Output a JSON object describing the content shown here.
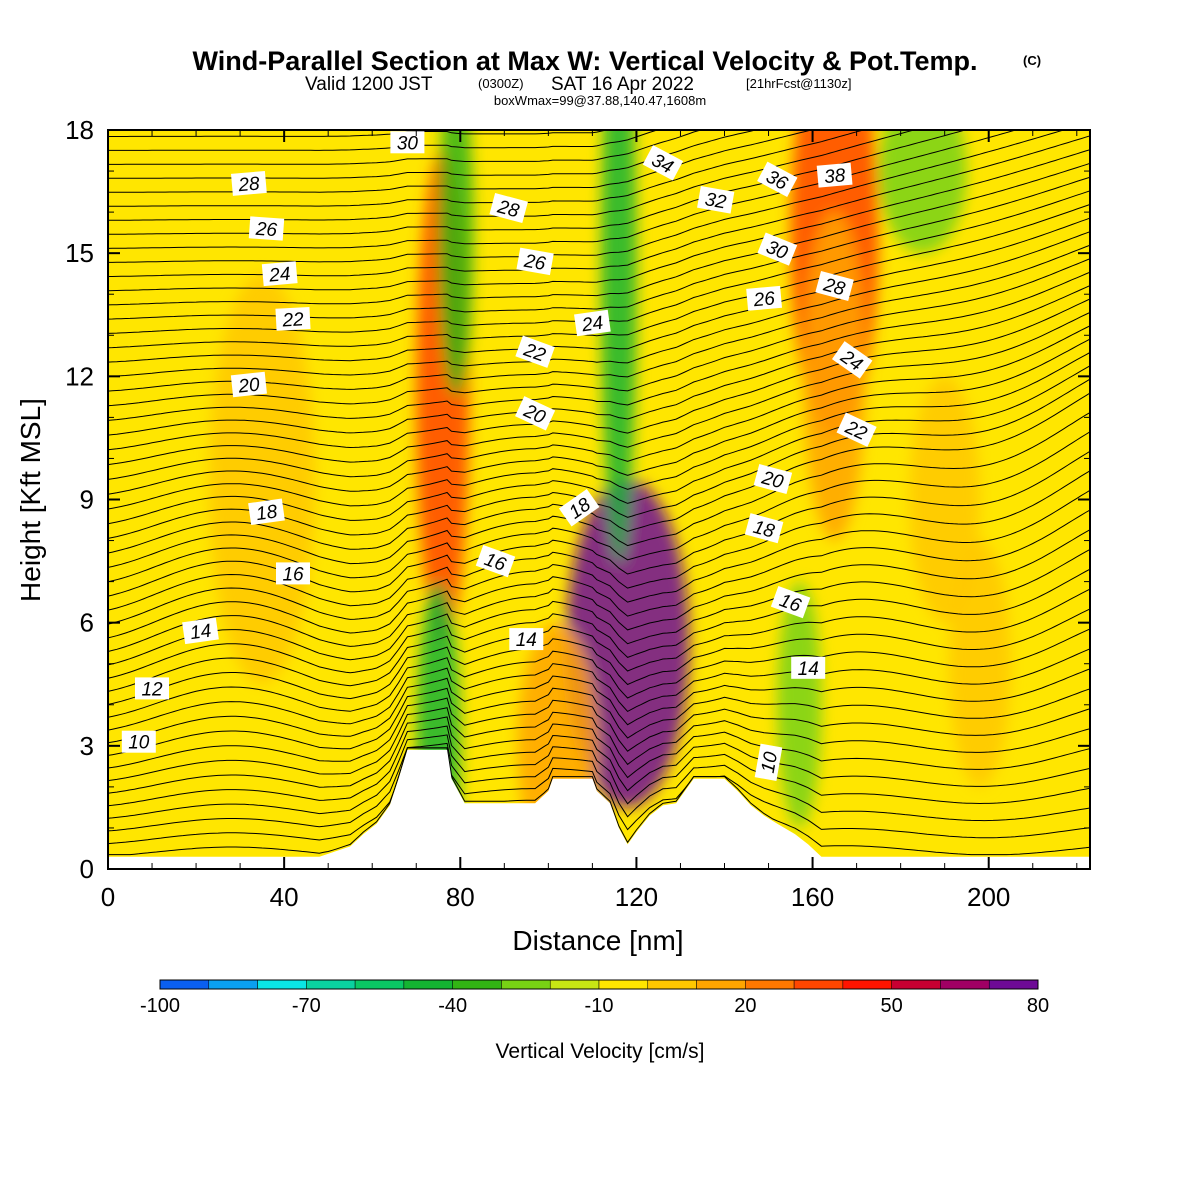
{
  "title": {
    "main": "Wind-Parallel Section at Max W: Vertical Velocity & Pot.Temp.",
    "copyright": "(C)",
    "valid_prefix": "Valid 1200 JST",
    "valid_utc": "(0300Z)",
    "valid_suffix": "SAT 16 Apr 2022",
    "forecast": "[21hrFcst@1130z]",
    "boxwmax": "boxWmax=99@37.88,140.47,1608m"
  },
  "chart_data": {
    "type": "heatmap",
    "xlabel": "Distance [nm]",
    "ylabel": "Height [Kft MSL]",
    "xlim": [
      0,
      223
    ],
    "ylim": [
      0,
      18
    ],
    "x_ticks": [
      "0",
      "40",
      "80",
      "120",
      "160",
      "200"
    ],
    "y_ticks": [
      "0",
      "3",
      "6",
      "9",
      "12",
      "15",
      "18"
    ],
    "colorbar": {
      "title": "Vertical Velocity [cm/s]",
      "labels": [
        "-100",
        "-70",
        "-40",
        "-10",
        "20",
        "50",
        "80"
      ],
      "levels": [
        -100,
        -90,
        -80,
        -70,
        -60,
        -50,
        -40,
        -30,
        -20,
        -10,
        0,
        10,
        20,
        30,
        40,
        50,
        60,
        70,
        80
      ],
      "colors": [
        "#1e1ee6",
        "#0a5ff0",
        "#0aa0f0",
        "#0ae6e6",
        "#0ad2a0",
        "#0ac864",
        "#14b432",
        "#32b414",
        "#78d214",
        "#c8e614",
        "#ffe600",
        "#ffc800",
        "#ffa500",
        "#ff7800",
        "#ff4600",
        "#ff1400",
        "#c80032",
        "#a00064",
        "#6e0a96"
      ]
    },
    "terrain_profile_kft": [
      [
        0,
        0.3
      ],
      [
        48,
        0.3
      ],
      [
        55,
        0.55
      ],
      [
        58,
        0.85
      ],
      [
        61,
        1.1
      ],
      [
        64,
        1.55
      ],
      [
        66,
        2.2
      ],
      [
        68,
        2.9
      ],
      [
        77,
        2.9
      ],
      [
        78,
        2.2
      ],
      [
        81,
        1.6
      ],
      [
        97,
        1.6
      ],
      [
        100,
        1.9
      ],
      [
        101,
        2.2
      ],
      [
        110,
        2.2
      ],
      [
        111,
        1.9
      ],
      [
        114,
        1.6
      ],
      [
        116,
        1.0
      ],
      [
        118,
        0.6
      ],
      [
        120,
        0.9
      ],
      [
        123,
        1.3
      ],
      [
        126,
        1.55
      ],
      [
        129,
        1.6
      ],
      [
        131,
        1.9
      ],
      [
        133,
        2.2
      ],
      [
        140,
        2.2
      ],
      [
        143,
        1.9
      ],
      [
        146,
        1.55
      ],
      [
        149,
        1.3
      ],
      [
        152,
        1.1
      ],
      [
        156,
        0.85
      ],
      [
        159,
        0.6
      ],
      [
        162,
        0.3
      ],
      [
        223,
        0.3
      ]
    ],
    "vertical_velocity_features": [
      {
        "x": 118,
        "y": 5.5,
        "peak_cm_s": 80
      },
      {
        "x": 76,
        "y": 11.5,
        "peak_cm_s": 40
      },
      {
        "x": 75,
        "y": 3.0,
        "peak_cm_s": -40
      },
      {
        "x": 116,
        "y": 14.5,
        "peak_cm_s": -40
      },
      {
        "x": 79,
        "y": 15.5,
        "peak_cm_s": -30
      },
      {
        "x": 157,
        "y": 4.0,
        "peak_cm_s": -20
      },
      {
        "x": 165,
        "y": 15.5,
        "peak_cm_s": 40
      },
      {
        "x": 102,
        "y": 3.0,
        "peak_cm_s": 20
      },
      {
        "x": 165,
        "y": 12.0,
        "peak_cm_s": 20
      },
      {
        "x": 35,
        "y": 9.5,
        "peak_cm_s": 10
      },
      {
        "x": 190,
        "y": 9.0,
        "peak_cm_s": 10
      },
      {
        "x": 198,
        "y": 5.0,
        "peak_cm_s": 10
      },
      {
        "x": 185,
        "y": 17.0,
        "peak_cm_s": -20
      }
    ],
    "potential_temperature_labels": [
      {
        "x": 7,
        "y": 3.1,
        "text": "10",
        "rot": 0
      },
      {
        "x": 10,
        "y": 4.4,
        "text": "12",
        "rot": 0
      },
      {
        "x": 21,
        "y": 5.8,
        "text": "14",
        "rot": -8
      },
      {
        "x": 42,
        "y": 7.2,
        "text": "16",
        "rot": 0
      },
      {
        "x": 36,
        "y": 8.7,
        "text": "18",
        "rot": -8
      },
      {
        "x": 32,
        "y": 11.8,
        "text": "20",
        "rot": -6
      },
      {
        "x": 42,
        "y": 13.4,
        "text": "22",
        "rot": -3
      },
      {
        "x": 39,
        "y": 14.5,
        "text": "24",
        "rot": -5
      },
      {
        "x": 36,
        "y": 15.6,
        "text": "26",
        "rot": 4
      },
      {
        "x": 32,
        "y": 16.7,
        "text": "28",
        "rot": -5
      },
      {
        "x": 68,
        "y": 17.7,
        "text": "30",
        "rot": 0
      },
      {
        "x": 91,
        "y": 16.1,
        "text": "28",
        "rot": 15
      },
      {
        "x": 97,
        "y": 14.8,
        "text": "26",
        "rot": 10
      },
      {
        "x": 110,
        "y": 13.3,
        "text": "24",
        "rot": -8
      },
      {
        "x": 97,
        "y": 12.6,
        "text": "22",
        "rot": 20
      },
      {
        "x": 97,
        "y": 11.1,
        "text": "20",
        "rot": 25
      },
      {
        "x": 107,
        "y": 8.8,
        "text": "18",
        "rot": -35
      },
      {
        "x": 88,
        "y": 7.5,
        "text": "16",
        "rot": 20
      },
      {
        "x": 95,
        "y": 5.6,
        "text": "14",
        "rot": 0
      },
      {
        "x": 126,
        "y": 17.2,
        "text": "34",
        "rot": 28
      },
      {
        "x": 138,
        "y": 16.3,
        "text": "32",
        "rot": 10
      },
      {
        "x": 152,
        "y": 16.8,
        "text": "36",
        "rot": 28
      },
      {
        "x": 165,
        "y": 16.9,
        "text": "38",
        "rot": -5
      },
      {
        "x": 152,
        "y": 15.1,
        "text": "30",
        "rot": 22
      },
      {
        "x": 165,
        "y": 14.2,
        "text": "28",
        "rot": 15
      },
      {
        "x": 149,
        "y": 13.9,
        "text": "26",
        "rot": -5
      },
      {
        "x": 169,
        "y": 12.4,
        "text": "24",
        "rot": 35
      },
      {
        "x": 170,
        "y": 10.7,
        "text": "22",
        "rot": 25
      },
      {
        "x": 151,
        "y": 9.5,
        "text": "20",
        "rot": 15
      },
      {
        "x": 149,
        "y": 8.3,
        "text": "18",
        "rot": 15
      },
      {
        "x": 155,
        "y": 6.5,
        "text": "16",
        "rot": 20
      },
      {
        "x": 159,
        "y": 4.9,
        "text": "14",
        "rot": 0
      },
      {
        "x": 150,
        "y": 2.6,
        "text": "10",
        "rot": -80
      }
    ]
  }
}
